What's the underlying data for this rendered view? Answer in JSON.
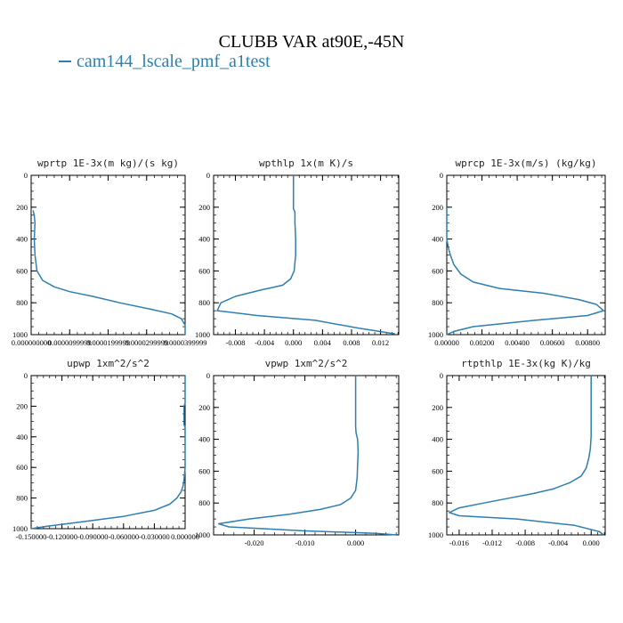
{
  "title": "CLUBB VAR at90E,-45N",
  "legend": {
    "label": "cam144_lscale_pmf_a1test",
    "color": "#2e7fb0"
  },
  "chart_data": [
    {
      "type": "line",
      "title": "wprtp  1E-3x(m kg)/(s kg)",
      "xlim": [
        0.0,
        4e-05
      ],
      "ylim": [
        1000,
        0
      ],
      "xticks": [
        0,
        1e-05,
        2e-05,
        3e-05,
        4e-05
      ],
      "xtick_labels": [
        "0.000000000",
        "0.0000099999",
        "0.0000199999",
        "0.0000299999",
        "0.0000399999"
      ],
      "yticks": [
        0,
        200,
        400,
        600,
        800,
        1000
      ],
      "series": [
        {
          "name": "cam144_lscale_pmf_a1test",
          "x": [
            5e-07,
            8e-07,
            1e-06,
            9e-07,
            8e-07,
            1e-06,
            1.5e-06,
            3e-06,
            6e-06,
            1e-05,
            1.6e-05,
            2.3e-05,
            3.1e-05,
            3.65e-05,
            3.9e-05,
            4e-05,
            4e-05
          ],
          "y": [
            220,
            250,
            300,
            350,
            400,
            500,
            600,
            660,
            700,
            730,
            760,
            800,
            840,
            870,
            900,
            940,
            1000
          ]
        }
      ]
    },
    {
      "type": "line",
      "title": "wpthlp  1x(m K)/s",
      "xlim": [
        -0.011,
        0.0145
      ],
      "ylim": [
        1000,
        0
      ],
      "xticks": [
        -0.008,
        -0.004,
        0.0,
        0.004,
        0.008,
        0.012
      ],
      "xtick_labels": [
        "-0.008",
        "-0.004",
        "0.000",
        "0.004",
        "0.008",
        "0.012"
      ],
      "yticks": [
        0,
        200,
        400,
        600,
        800,
        1000
      ],
      "series": [
        {
          "name": "cam144_lscale_pmf_a1test",
          "x": [
            0.0,
            0.0,
            0.0002,
            0.0002,
            0.0003,
            0.0003,
            0.0001,
            -0.0004,
            -0.0015,
            -0.0045,
            -0.008,
            -0.01,
            -0.0105,
            -0.005,
            0.003,
            0.009,
            0.014
          ],
          "y": [
            0,
            210,
            230,
            300,
            400,
            500,
            600,
            650,
            690,
            720,
            760,
            800,
            850,
            880,
            910,
            960,
            995
          ]
        }
      ]
    },
    {
      "type": "line",
      "title": "wprcp  1E-3x(m/s) (kg/kg)",
      "xlim": [
        0.0,
        0.009
      ],
      "ylim": [
        1000,
        0
      ],
      "xticks": [
        0.0,
        0.002,
        0.004,
        0.006,
        0.008
      ],
      "xtick_labels": [
        "0.00000",
        "0.00200",
        "0.00400",
        "0.00600",
        "0.00800"
      ],
      "yticks": [
        0,
        200,
        400,
        600,
        800,
        1000
      ],
      "series": [
        {
          "name": "cam144_lscale_pmf_a1test",
          "x": [
            0.0,
            0.0,
            0.0,
            0.0001,
            0.0002,
            0.0004,
            0.0008,
            0.0015,
            0.003,
            0.0055,
            0.0075,
            0.0085,
            0.0089,
            0.008,
            0.005,
            0.0015,
            0.0004,
            0.0
          ],
          "y": [
            200,
            300,
            400,
            460,
            500,
            560,
            620,
            670,
            710,
            740,
            780,
            810,
            850,
            880,
            910,
            950,
            980,
            1000
          ]
        }
      ]
    },
    {
      "type": "line",
      "title": "upwp  1xm^2/s^2",
      "xlim": [
        -0.15,
        0.0
      ],
      "ylim": [
        1000,
        0
      ],
      "xticks": [
        -0.15,
        -0.12,
        -0.09,
        -0.06,
        -0.03,
        0.0
      ],
      "xtick_labels": [
        "-0.150000",
        "-0.120000",
        "-0.090000",
        "-0.060000",
        "-0.030000",
        "0.000000"
      ],
      "yticks": [
        0,
        200,
        400,
        600,
        800,
        1000
      ],
      "series": [
        {
          "name": "cam144_lscale_pmf_a1test",
          "x": [
            0.0,
            0.0,
            -0.001,
            -0.001,
            0.0,
            0.0,
            0.0,
            -0.001,
            -0.002,
            -0.004,
            -0.008,
            -0.015,
            -0.03,
            -0.06,
            -0.1,
            -0.135,
            -0.15
          ],
          "y": [
            0,
            180,
            200,
            320,
            340,
            500,
            600,
            680,
            720,
            760,
            800,
            840,
            880,
            920,
            955,
            985,
            1000
          ]
        }
      ]
    },
    {
      "type": "line",
      "title": "vpwp  1xm^2/s^2",
      "xlim": [
        -0.028,
        0.0085
      ],
      "ylim": [
        1000,
        0
      ],
      "xticks": [
        -0.02,
        -0.01,
        0.0
      ],
      "xtick_labels": [
        "-0.020",
        "-0.010",
        "0.000"
      ],
      "yticks": [
        0,
        200,
        400,
        600,
        800,
        1000
      ],
      "series": [
        {
          "name": "cam144_lscale_pmf_a1test",
          "x": [
            0.0,
            0.0,
            0.0,
            0.0001,
            0.0004,
            0.0005,
            0.0004,
            0.0003,
            0.0,
            -0.001,
            -0.003,
            -0.007,
            -0.013,
            -0.021,
            -0.027,
            -0.025,
            -0.01,
            0.004,
            0.008
          ],
          "y": [
            0,
            280,
            320,
            360,
            400,
            480,
            560,
            640,
            720,
            770,
            810,
            840,
            870,
            900,
            930,
            950,
            975,
            990,
            1000
          ]
        }
      ]
    },
    {
      "type": "line",
      "title": "rtpthlp  1E-3x(kg K)/kg",
      "xlim": [
        -0.0175,
        0.0017
      ],
      "ylim": [
        1000,
        0
      ],
      "xticks": [
        -0.016,
        -0.012,
        -0.008,
        -0.004,
        0.0
      ],
      "xtick_labels": [
        "-0.016",
        "-0.012",
        "-0.008",
        "-0.004",
        "0.000"
      ],
      "yticks": [
        0,
        200,
        400,
        600,
        800,
        1000
      ],
      "series": [
        {
          "name": "cam144_lscale_pmf_a1test",
          "x": [
            0.0,
            0.0,
            0.0,
            -0.0001,
            -0.0003,
            -0.0006,
            -0.0012,
            -0.0025,
            -0.0045,
            -0.007,
            -0.01,
            -0.013,
            -0.016,
            -0.0172,
            -0.016,
            -0.009,
            -0.002,
            0.001,
            0.0015
          ],
          "y": [
            0,
            200,
            380,
            460,
            520,
            580,
            630,
            670,
            710,
            740,
            770,
            800,
            830,
            860,
            880,
            900,
            940,
            980,
            1000
          ]
        }
      ]
    }
  ]
}
